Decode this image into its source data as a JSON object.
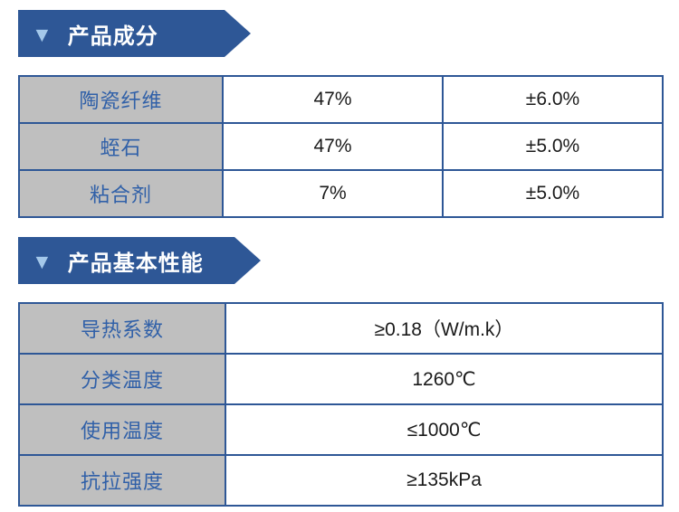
{
  "colors": {
    "banner_blue": "#2E5796",
    "banner_triangle_light_blue": "#A4C8EA",
    "banner_text": "#FFFFFF",
    "table_border_blue": "#2E5796",
    "label_cell_gray": "#BFBFBF",
    "label_text_blue": "#3060A8",
    "value_text": "#1A1A1A",
    "page_background": "#FFFFFF"
  },
  "sections": [
    {
      "banner": {
        "icon": "▼",
        "title": "产品成分"
      },
      "table": {
        "rows": [
          {
            "label": "陶瓷纤维",
            "value": "47%",
            "tolerance": "±6.0%"
          },
          {
            "label": "蛭石",
            "value": "47%",
            "tolerance": "±5.0%"
          },
          {
            "label": "粘合剂",
            "value": "7%",
            "tolerance": "±5.0%"
          }
        ]
      }
    },
    {
      "banner": {
        "icon": "▼",
        "title": "产品基本性能"
      },
      "table": {
        "rows": [
          {
            "label": "导热系数",
            "value": "≥0.18（W/m.k）"
          },
          {
            "label": "分类温度",
            "value": "1260℃"
          },
          {
            "label": "使用温度",
            "value": "≤1000℃"
          },
          {
            "label": "抗拉强度",
            "value": "≥135kPa"
          }
        ]
      }
    }
  ]
}
